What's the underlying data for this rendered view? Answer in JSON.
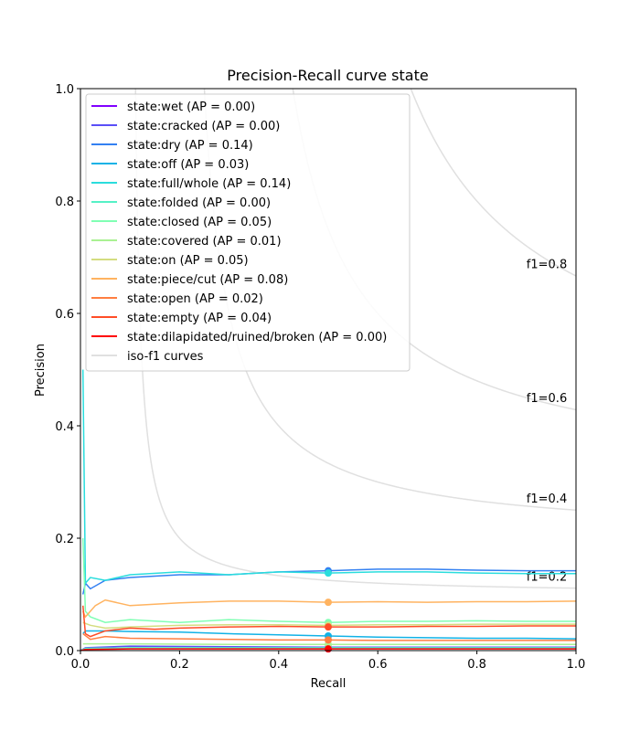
{
  "chart_data": {
    "type": "line",
    "title": "Precision-Recall curve state",
    "xlabel": "Recall",
    "ylabel": "Precision",
    "xlim": [
      0.0,
      1.0
    ],
    "ylim": [
      0.0,
      1.0
    ],
    "xticks": [
      "0.0",
      "0.2",
      "0.4",
      "0.6",
      "0.8",
      "1.0"
    ],
    "yticks": [
      "0.0",
      "0.2",
      "0.4",
      "0.6",
      "0.8",
      "1.0"
    ],
    "grid": false,
    "legend_position": "top-left",
    "iso_f1": {
      "legend_label": "iso-f1 curves",
      "color": "#e0e0e0",
      "levels": [
        0.2,
        0.4,
        0.6,
        0.8
      ],
      "labels": [
        "f1=0.2",
        "f1=0.4",
        "f1=0.6",
        "f1=0.8"
      ]
    },
    "series": [
      {
        "name": "state:wet (AP = 0.00)",
        "color": "#8000ff",
        "x": [
          0.0,
          0.01,
          0.1,
          0.3,
          0.5,
          0.7,
          1.0
        ],
        "y": [
          0.0,
          0.003,
          0.004,
          0.004,
          0.004,
          0.004,
          0.004
        ],
        "marker": [
          0.5,
          0.003
        ]
      },
      {
        "name": "state:cracked (AP = 0.00)",
        "color": "#5a4ef7",
        "x": [
          0.0,
          0.01,
          0.1,
          0.3,
          0.5,
          0.7,
          1.0
        ],
        "y": [
          0.0,
          0.005,
          0.008,
          0.007,
          0.006,
          0.006,
          0.006
        ],
        "marker": [
          0.5,
          0.006
        ]
      },
      {
        "name": "state:dry (AP = 0.14)",
        "color": "#3380f2",
        "x": [
          0.005,
          0.01,
          0.02,
          0.05,
          0.1,
          0.2,
          0.3,
          0.4,
          0.5,
          0.6,
          0.7,
          0.8,
          0.9,
          1.0
        ],
        "y": [
          0.1,
          0.12,
          0.11,
          0.125,
          0.13,
          0.135,
          0.135,
          0.14,
          0.142,
          0.145,
          0.145,
          0.143,
          0.142,
          0.142
        ],
        "marker": [
          0.5,
          0.142
        ]
      },
      {
        "name": "state:off (AP = 0.03)",
        "color": "#12b2e6",
        "x": [
          0.005,
          0.01,
          0.05,
          0.1,
          0.2,
          0.3,
          0.4,
          0.5,
          0.6,
          0.7,
          0.8,
          0.9,
          1.0
        ],
        "y": [
          0.03,
          0.035,
          0.035,
          0.034,
          0.033,
          0.03,
          0.028,
          0.026,
          0.024,
          0.023,
          0.022,
          0.022,
          0.021
        ],
        "marker": [
          0.5,
          0.026
        ]
      },
      {
        "name": "state:full/whole (AP = 0.14)",
        "color": "#2adddd",
        "x": [
          0.005,
          0.01,
          0.02,
          0.05,
          0.1,
          0.2,
          0.3,
          0.4,
          0.5,
          0.6,
          0.7,
          0.8,
          0.9,
          1.0
        ],
        "y": [
          0.5,
          0.12,
          0.13,
          0.125,
          0.135,
          0.14,
          0.135,
          0.14,
          0.138,
          0.14,
          0.14,
          0.138,
          0.137,
          0.137
        ],
        "marker": [
          0.5,
          0.138
        ]
      },
      {
        "name": "state:folded (AP = 0.00)",
        "color": "#55f1c6",
        "x": [
          0.0,
          0.01,
          0.1,
          0.3,
          0.5,
          0.7,
          1.0
        ],
        "y": [
          0.0,
          0.004,
          0.005,
          0.005,
          0.005,
          0.005,
          0.005
        ],
        "marker": [
          0.5,
          0.005
        ]
      },
      {
        "name": "state:closed (AP = 0.05)",
        "color": "#80ffb4",
        "x": [
          0.005,
          0.01,
          0.02,
          0.05,
          0.1,
          0.2,
          0.3,
          0.4,
          0.5,
          0.6,
          0.7,
          0.8,
          0.9,
          1.0
        ],
        "y": [
          0.2,
          0.07,
          0.06,
          0.05,
          0.055,
          0.05,
          0.055,
          0.052,
          0.05,
          0.052,
          0.052,
          0.053,
          0.052,
          0.052
        ],
        "marker": [
          0.5,
          0.05
        ]
      },
      {
        "name": "state:covered (AP = 0.01)",
        "color": "#aaf193",
        "x": [
          0.005,
          0.05,
          0.1,
          0.3,
          0.5,
          0.7,
          1.0
        ],
        "y": [
          0.012,
          0.012,
          0.012,
          0.011,
          0.011,
          0.011,
          0.011
        ],
        "marker": [
          0.5,
          0.011
        ]
      },
      {
        "name": "state:on (AP = 0.05)",
        "color": "#d4dd80",
        "x": [
          0.005,
          0.02,
          0.05,
          0.1,
          0.2,
          0.3,
          0.4,
          0.5,
          0.6,
          0.7,
          0.8,
          0.9,
          1.0
        ],
        "y": [
          0.05,
          0.045,
          0.04,
          0.042,
          0.045,
          0.046,
          0.046,
          0.045,
          0.046,
          0.046,
          0.047,
          0.047,
          0.047
        ],
        "marker": [
          0.5,
          0.045
        ]
      },
      {
        "name": "state:piece/cut (AP = 0.08)",
        "color": "#ffb360",
        "x": [
          0.005,
          0.01,
          0.03,
          0.05,
          0.1,
          0.2,
          0.3,
          0.4,
          0.5,
          0.6,
          0.7,
          0.8,
          0.9,
          1.0
        ],
        "y": [
          0.07,
          0.06,
          0.08,
          0.09,
          0.08,
          0.085,
          0.088,
          0.088,
          0.086,
          0.087,
          0.086,
          0.087,
          0.087,
          0.088
        ],
        "marker": [
          0.5,
          0.086
        ]
      },
      {
        "name": "state:open (AP = 0.02)",
        "color": "#ff7e41",
        "x": [
          0.005,
          0.02,
          0.05,
          0.1,
          0.2,
          0.3,
          0.4,
          0.5,
          0.6,
          0.7,
          0.8,
          0.9,
          1.0
        ],
        "y": [
          0.03,
          0.02,
          0.025,
          0.022,
          0.021,
          0.02,
          0.019,
          0.019,
          0.018,
          0.018,
          0.018,
          0.018,
          0.018
        ],
        "marker": [
          0.5,
          0.019
        ]
      },
      {
        "name": "state:empty (AP = 0.04)",
        "color": "#ff4d27",
        "x": [
          0.005,
          0.01,
          0.02,
          0.05,
          0.1,
          0.15,
          0.2,
          0.3,
          0.4,
          0.5,
          0.6,
          0.7,
          0.8,
          0.9,
          1.0
        ],
        "y": [
          0.08,
          0.03,
          0.025,
          0.035,
          0.04,
          0.038,
          0.04,
          0.042,
          0.043,
          0.042,
          0.042,
          0.043,
          0.043,
          0.044,
          0.044
        ],
        "marker": [
          0.5,
          0.042
        ]
      },
      {
        "name": "state:dilapidated/ruined/broken (AP = 0.00)",
        "color": "#ff0000",
        "x": [
          0.0,
          0.01,
          0.1,
          0.3,
          0.5,
          0.7,
          1.0
        ],
        "y": [
          0.0,
          0.002,
          0.003,
          0.003,
          0.003,
          0.003,
          0.003
        ],
        "marker": [
          0.5,
          0.003
        ]
      }
    ]
  }
}
